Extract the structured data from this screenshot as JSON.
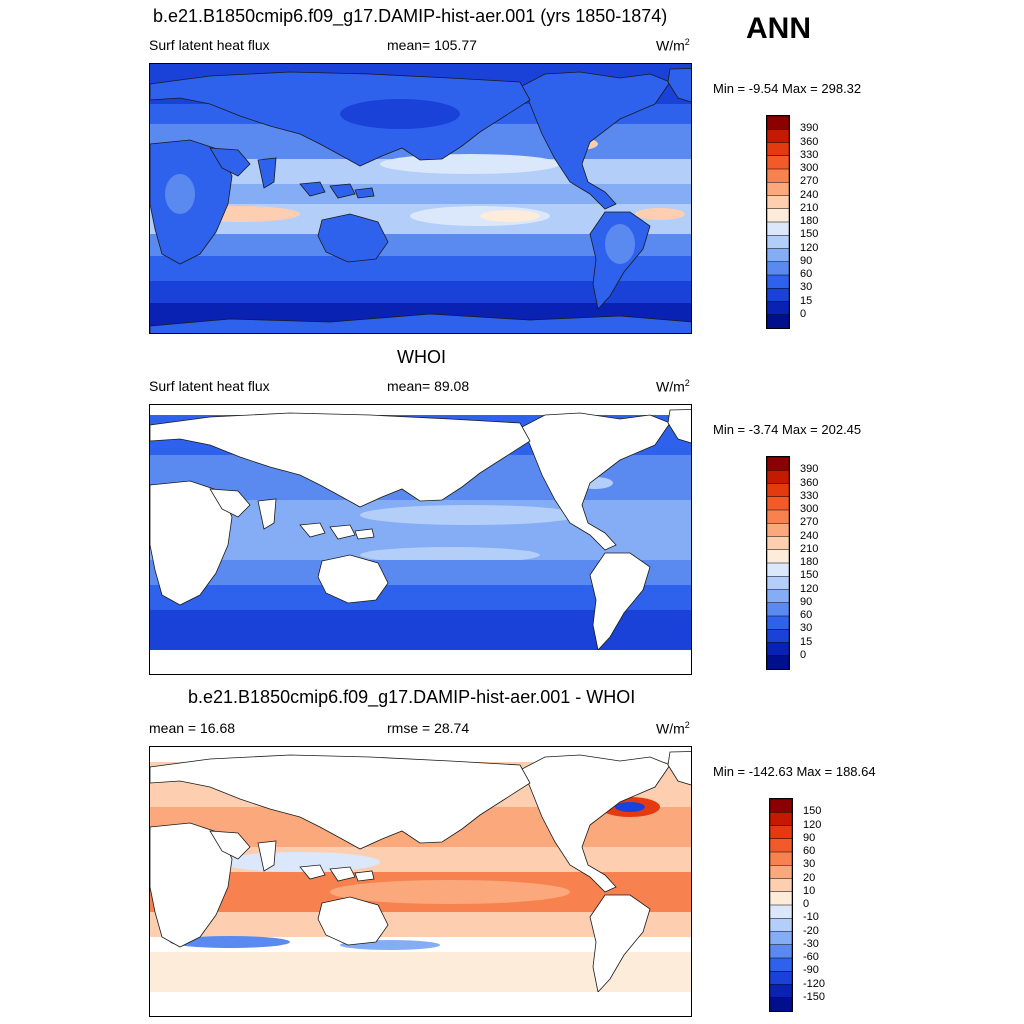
{
  "season": "ANN",
  "units": "W/m",
  "units_sup": "2",
  "panels": [
    {
      "title": "b.e21.B1850cmip6.f09_g17.DAMIP-hist-aer.001 (yrs 1850-1874)",
      "variable": "Surf latent heat flux",
      "mean_label": "mean= 105.77",
      "minmax": "Min =  -9.54 Max = 298.32"
    },
    {
      "title": "WHOI",
      "variable": "Surf latent heat flux",
      "mean_label": "mean=  89.08",
      "minmax": "Min =  -3.74 Max = 202.45"
    },
    {
      "title": "b.e21.B1850cmip6.f09_g17.DAMIP-hist-aer.001 - WHOI",
      "mean_label": "mean =  16.68",
      "rmse_label": "rmse =  28.74",
      "minmax": "Min = -142.63 Max = 188.64"
    }
  ],
  "colorbar_abs": {
    "levels": [
      "390",
      "360",
      "330",
      "300",
      "270",
      "240",
      "210",
      "180",
      "150",
      "120",
      "90",
      "60",
      "30",
      "15",
      "0"
    ],
    "colors": [
      "#8b0000",
      "#c41a00",
      "#e53a10",
      "#f25a2a",
      "#f7824f",
      "#fba97c",
      "#fdcfb0",
      "#fdecd9",
      "#dbe7fb",
      "#b3cef9",
      "#85adf5",
      "#5a8af0",
      "#2f62ec",
      "#1a42d8",
      "#0a22b4",
      "#00108c"
    ]
  },
  "colorbar_diff": {
    "levels": [
      "150",
      "120",
      "90",
      "60",
      "30",
      "20",
      "10",
      "0",
      "-10",
      "-20",
      "-30",
      "-60",
      "-90",
      "-120",
      "-150"
    ],
    "colors": [
      "#8b0000",
      "#c41a00",
      "#e53a10",
      "#f25a2a",
      "#f7824f",
      "#fba97c",
      "#fdcfb0",
      "#fdecd9",
      "#dbe7fb",
      "#b3cef9",
      "#85adf5",
      "#5a8af0",
      "#2f62ec",
      "#1a42d8",
      "#0a22b4",
      "#00108c"
    ]
  }
}
